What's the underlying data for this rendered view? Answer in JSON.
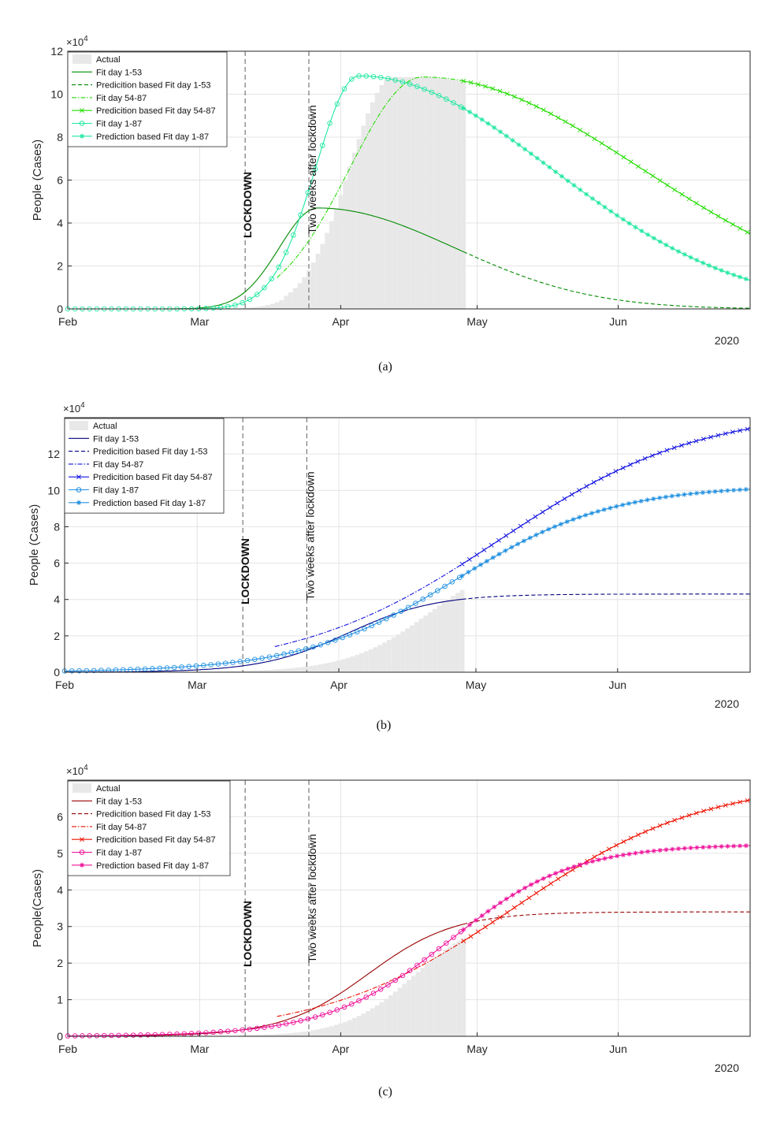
{
  "chart_data": [
    {
      "type": "line",
      "panel_label": "(a)",
      "ylabel": "People (Cases)",
      "exponent_label": "×10",
      "exponent_power": "4",
      "year_label": "2020",
      "ylim": [
        0,
        12
      ],
      "yticks": [
        0,
        2,
        4,
        6,
        8,
        10,
        12
      ],
      "x_tick_labels": [
        "Feb",
        "Mar",
        "Apr",
        "May",
        "Jun"
      ],
      "annotations": [
        "LOCKDOWN",
        "Two weeks after lockdown"
      ],
      "legend": [
        "Actual",
        "Fit day 1-53",
        "Predicition based Fit day 1-53",
        "Fit day 54-87",
        "Predicition based Fit day 54-87",
        "Fit day 1-87",
        "Prediction based Fit day 1-87"
      ],
      "legend_position": "top-left",
      "colors": {
        "fit53": "#008a00",
        "fit5487": "#22dd00",
        "fit187": "#20e8a0",
        "bars": "#e8e8e8"
      },
      "grid": true
    },
    {
      "type": "line",
      "panel_label": "(b)",
      "ylabel": "People (Cases)",
      "exponent_label": "×10",
      "exponent_power": "4",
      "year_label": "2020",
      "ylim": [
        0,
        14
      ],
      "yticks": [
        0,
        2,
        4,
        6,
        8,
        10,
        12
      ],
      "x_tick_labels": [
        "Feb",
        "Mar",
        "Apr",
        "May",
        "Jun"
      ],
      "annotations": [
        "LOCKDOWN",
        "Two weeks after lockdown"
      ],
      "legend": [
        "Actual",
        "Fit day 1-53",
        "Predicition based Fit day 1-53",
        "Fit day 54-87",
        "Predicition based Fit day 54-87",
        "Fit day 1-87",
        "Prediction based Fit day 1-87"
      ],
      "legend_position": "top-left",
      "colors": {
        "fit53": "#000080",
        "fit5487": "#1010e0",
        "fit187": "#2090e0",
        "bars": "#e8e8e8"
      },
      "grid": true
    },
    {
      "type": "line",
      "panel_label": "(c)",
      "ylabel": "People(Cases)",
      "exponent_label": "×10",
      "exponent_power": "4",
      "year_label": "2020",
      "ylim": [
        0,
        7
      ],
      "yticks": [
        0,
        1,
        2,
        3,
        4,
        5,
        6
      ],
      "x_tick_labels": [
        "Feb",
        "Mar",
        "Apr",
        "May",
        "Jun"
      ],
      "annotations": [
        "LOCKDOWN",
        "Two weeks after lockdown"
      ],
      "legend": [
        "Actual",
        "Fit day 1-53",
        "Predicition based Fit day 1-53",
        "Fit day 54-87",
        "Predicition based Fit day 54-87",
        "Fit day 1-87",
        "Prediction based Fit day 1-87"
      ],
      "legend_position": "top-left",
      "colors": {
        "fit53": "#990000",
        "fit5487": "#ee1100",
        "fit187": "#ee1199",
        "bars": "#e8e8e8"
      },
      "grid": true
    }
  ]
}
